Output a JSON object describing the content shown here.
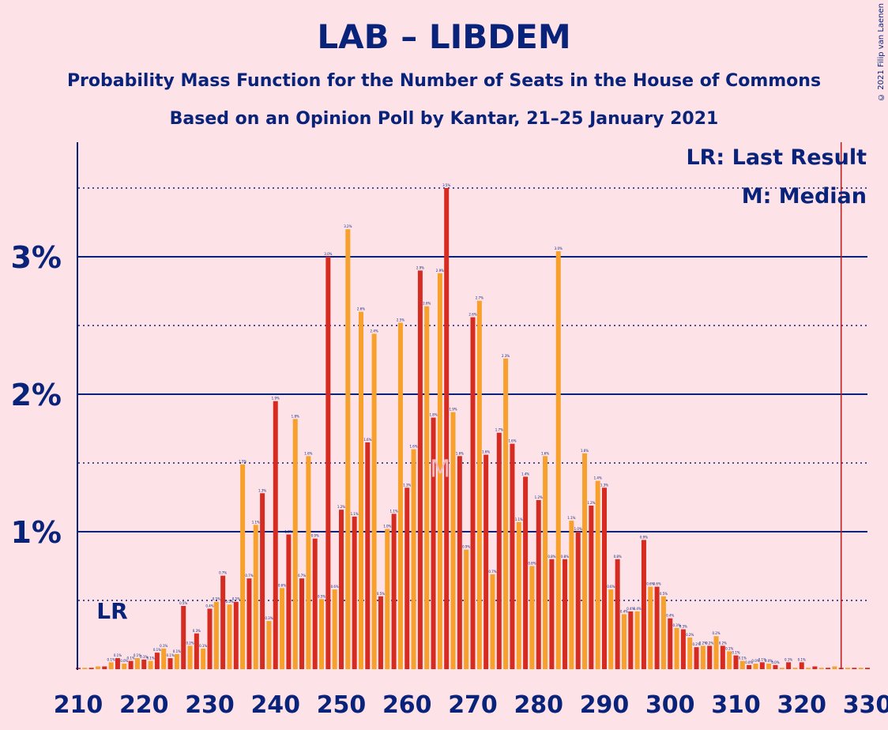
{
  "header": {
    "title": "LAB – LIBDEM",
    "subtitle": "Probability Mass Function for the Number of Seats in the House of Commons",
    "subtitle2": "Based on an Opinion Poll by Kantar, 21–25 January 2021",
    "copyright": "© 2021 Filip van Laenen"
  },
  "legend": {
    "lr": "LR: Last Result",
    "median": "M: Median"
  },
  "colors": {
    "background": "#fde3e8",
    "text": "#0a237a",
    "bar_dark": "#d62b20",
    "bar_light": "#f7a02b",
    "majority_line": "#c01818"
  },
  "chart_data": {
    "type": "bar",
    "x_start": 210,
    "x_end": 330,
    "x_ticks": [
      "210",
      "220",
      "230",
      "240",
      "250",
      "260",
      "270",
      "280",
      "290",
      "300",
      "310",
      "320",
      "330"
    ],
    "y_ticks": [
      "1%",
      "2%",
      "3%"
    ],
    "ylim": [
      0,
      3.8
    ],
    "last_result": 213,
    "last_result_label": "LR",
    "median": 266,
    "median_label": "M",
    "majority_threshold": 326,
    "values": [
      0.01,
      0.01,
      0.01,
      0.02,
      0.02,
      0.05,
      0.08,
      0.04,
      0.06,
      0.08,
      0.07,
      0.06,
      0.12,
      0.15,
      0.08,
      0.11,
      0.46,
      0.17,
      0.26,
      0.15,
      0.44,
      0.49,
      0.68,
      0.47,
      0.49,
      1.49,
      0.66,
      1.05,
      1.28,
      0.35,
      1.95,
      0.59,
      0.98,
      1.82,
      0.66,
      1.55,
      0.95,
      0.51,
      3.0,
      0.58,
      1.16,
      3.2,
      1.11,
      2.6,
      1.65,
      2.44,
      0.53,
      1.02,
      1.13,
      2.52,
      1.32,
      1.6,
      2.9,
      2.64,
      1.83,
      2.88,
      3.5,
      1.87,
      1.55,
      0.87,
      2.56,
      2.68,
      1.56,
      0.69,
      1.72,
      2.26,
      1.64,
      1.07,
      1.4,
      0.75,
      1.23,
      1.55,
      0.8,
      3.04,
      0.8,
      1.08,
      1.0,
      1.57,
      1.19,
      1.37,
      1.32,
      0.58,
      0.8,
      0.4,
      0.42,
      0.42,
      0.94,
      0.6,
      0.6,
      0.53,
      0.37,
      0.3,
      0.29,
      0.23,
      0.16,
      0.17,
      0.17,
      0.24,
      0.17,
      0.13,
      0.1,
      0.06,
      0.03,
      0.04,
      0.05,
      0.04,
      0.03,
      0.01,
      0.05,
      0.01,
      0.05,
      0.01,
      0.02,
      0.01,
      0.01,
      0.02,
      0.01,
      0.01,
      0.01,
      0.01,
      0.01
    ]
  }
}
